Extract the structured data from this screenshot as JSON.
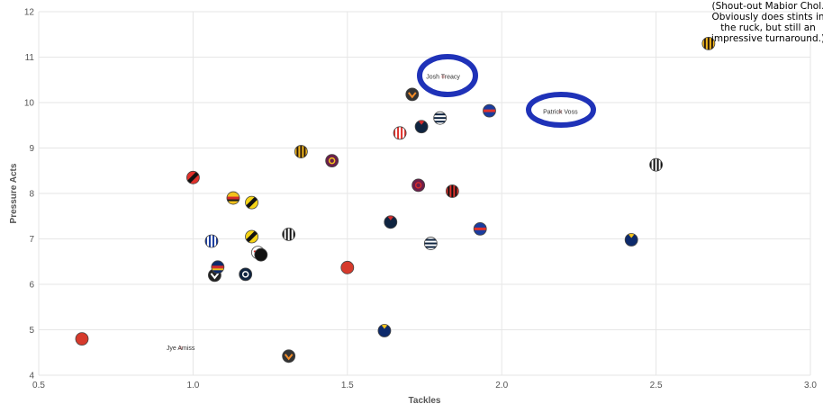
{
  "chart_data": {
    "type": "scatter",
    "xlabel": "Tackles",
    "ylabel": "Pressure Acts",
    "xlim": [
      0.5,
      3.0
    ],
    "ylim": [
      4,
      12
    ],
    "x_ticks": [
      "0.5",
      "1.0",
      "1.5",
      "2.0",
      "2.5",
      "3.0"
    ],
    "y_ticks": [
      "4",
      "5",
      "6",
      "7",
      "8",
      "9",
      "10",
      "11",
      "12"
    ],
    "grid": true,
    "note": [
      "(Shout-out Mabior Chol.",
      "Obviously does stints in",
      "the ruck, but still an",
      "impressive turnaround.)"
    ],
    "points": [
      {
        "x": 0.64,
        "y": 4.8,
        "colors": [
          "#d63a2c",
          "#c02a1e"
        ],
        "style": "solid"
      },
      {
        "x": 0.96,
        "y": 4.6,
        "label": "Jye Amiss",
        "colors": [
          "#ffffff",
          "#ffffff"
        ],
        "style": "solid"
      },
      {
        "x": 1.0,
        "y": 8.35,
        "colors": [
          "#e0312b",
          "#111111"
        ],
        "style": "diag"
      },
      {
        "x": 1.06,
        "y": 6.95,
        "colors": [
          "#1a3c9e",
          "#ffffff"
        ],
        "style": "vstripe"
      },
      {
        "x": 1.07,
        "y": 6.2,
        "colors": [
          "#222222",
          "#ffffff"
        ],
        "style": "chevron"
      },
      {
        "x": 1.08,
        "y": 6.38,
        "colors": [
          "#0d2a6b",
          "#d62b2b",
          "#f2c21b"
        ],
        "style": "hband"
      },
      {
        "x": 1.13,
        "y": 7.9,
        "colors": [
          "#f2c21b",
          "#d62b2b",
          "#1a1a1a"
        ],
        "style": "hband"
      },
      {
        "x": 1.17,
        "y": 6.22,
        "colors": [
          "#0f2440",
          "#ffffff"
        ],
        "style": "ring"
      },
      {
        "x": 1.19,
        "y": 7.8,
        "colors": [
          "#f5d418",
          "#111111"
        ],
        "style": "diag"
      },
      {
        "x": 1.19,
        "y": 7.05,
        "colors": [
          "#f5d418",
          "#111111"
        ],
        "style": "diag"
      },
      {
        "x": 1.21,
        "y": 6.7,
        "colors": [
          "#ffffff",
          "#e0312b"
        ],
        "style": "chevron"
      },
      {
        "x": 1.22,
        "y": 6.65,
        "colors": [
          "#111111",
          "#ffffff"
        ],
        "style": "solid"
      },
      {
        "x": 1.31,
        "y": 7.1,
        "colors": [
          "#111111",
          "#ffffff"
        ],
        "style": "vstripe"
      },
      {
        "x": 1.31,
        "y": 4.42,
        "colors": [
          "#333333",
          "#f28c28"
        ],
        "style": "chevron"
      },
      {
        "x": 1.35,
        "y": 8.92,
        "colors": [
          "#f2b81b",
          "#2a1a10"
        ],
        "style": "vstripe"
      },
      {
        "x": 1.45,
        "y": 8.72,
        "colors": [
          "#6b1f4a",
          "#f2c21b"
        ],
        "style": "ring"
      },
      {
        "x": 1.5,
        "y": 6.37,
        "colors": [
          "#d63a2c",
          "#c02a1e"
        ],
        "style": "solid"
      },
      {
        "x": 1.62,
        "y": 4.98,
        "colors": [
          "#0d2a6b",
          "#f2c21b"
        ],
        "style": "cap"
      },
      {
        "x": 1.64,
        "y": 7.37,
        "colors": [
          "#0f2440",
          "#d62b2b"
        ],
        "style": "cap"
      },
      {
        "x": 1.67,
        "y": 9.33,
        "colors": [
          "#e0312b",
          "#ffffff"
        ],
        "style": "vstripe"
      },
      {
        "x": 1.71,
        "y": 10.18,
        "colors": [
          "#333333",
          "#f28c28"
        ],
        "style": "chevron"
      },
      {
        "x": 1.73,
        "y": 8.18,
        "colors": [
          "#6b1f4a",
          "#d62b2b"
        ],
        "style": "ring"
      },
      {
        "x": 1.74,
        "y": 9.47,
        "colors": [
          "#0f2440",
          "#d62b2b"
        ],
        "style": "cap"
      },
      {
        "x": 1.77,
        "y": 6.9,
        "colors": [
          "#ffffff",
          "#0f2440"
        ],
        "style": "hstripe"
      },
      {
        "x": 1.81,
        "y": 10.57,
        "label": "Josh Treacy",
        "colors": [
          "#ffffff",
          "#ffffff"
        ],
        "style": "solid"
      },
      {
        "x": 1.8,
        "y": 9.66,
        "colors": [
          "#ffffff",
          "#0f2440"
        ],
        "style": "hstripe"
      },
      {
        "x": 1.84,
        "y": 8.05,
        "colors": [
          "#e0312b",
          "#111111"
        ],
        "style": "vstripe"
      },
      {
        "x": 1.93,
        "y": 7.22,
        "colors": [
          "#1a3c9e",
          "#e0312b"
        ],
        "style": "hband"
      },
      {
        "x": 1.96,
        "y": 9.82,
        "colors": [
          "#1a3c9e",
          "#e0312b"
        ],
        "style": "hband"
      },
      {
        "x": 2.19,
        "y": 9.8,
        "label": "Patrick Voss",
        "colors": [
          "#ffffff",
          "#ffffff"
        ],
        "style": "solid"
      },
      {
        "x": 2.42,
        "y": 6.98,
        "colors": [
          "#0d2a6b",
          "#f2c21b"
        ],
        "style": "cap"
      },
      {
        "x": 2.5,
        "y": 8.63,
        "colors": [
          "#111111",
          "#ffffff"
        ],
        "style": "vstripe"
      },
      {
        "x": 2.67,
        "y": 11.3,
        "colors": [
          "#f2b81b",
          "#2a1a10"
        ],
        "style": "vstripe"
      }
    ]
  }
}
